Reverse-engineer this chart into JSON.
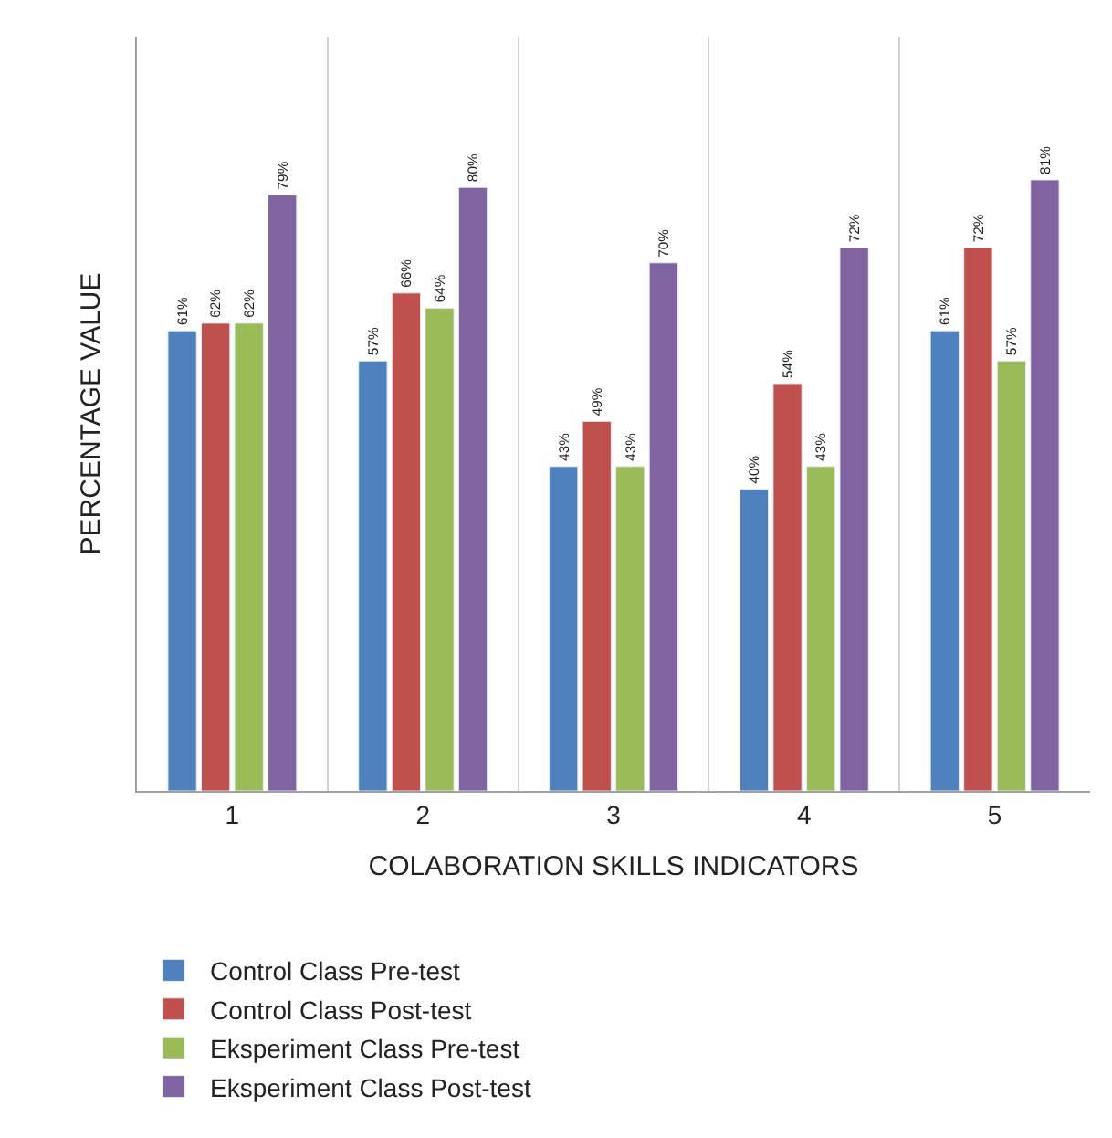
{
  "chart_data": {
    "type": "bar",
    "xlabel": "COLABORATION SKILLS INDICATORS",
    "ylabel": "PERCENTAGE VALUE",
    "categories": [
      "1",
      "2",
      "3",
      "4",
      "5"
    ],
    "series": [
      {
        "name": "Control Class Pre-test",
        "color": "#4f81bd",
        "values": [
          61,
          57,
          43,
          40,
          61
        ],
        "value_labels": [
          "61%",
          "57%",
          "43%",
          "40%",
          "61%"
        ]
      },
      {
        "name": "Control Class Post-test",
        "color": "#c0504d",
        "values": [
          62,
          66,
          49,
          54,
          72
        ],
        "value_labels": [
          "62%",
          "66%",
          "49%",
          "54%",
          "72%"
        ]
      },
      {
        "name": "Eksperiment Class Pre-test",
        "color": "#9bbb59",
        "values": [
          62,
          64,
          43,
          43,
          57
        ],
        "value_labels": [
          "62%",
          "64%",
          "43%",
          "43%",
          "57%"
        ]
      },
      {
        "name": "Eksperiment Class Post-test",
        "color": "#8064a2",
        "values": [
          79,
          80,
          70,
          72,
          81
        ],
        "value_labels": [
          "79%",
          "80%",
          "70%",
          "72%",
          "81%"
        ]
      }
    ],
    "ylim": [
      0,
      100
    ],
    "tick_labels": "x",
    "grid": "x",
    "legend": "bottom"
  }
}
